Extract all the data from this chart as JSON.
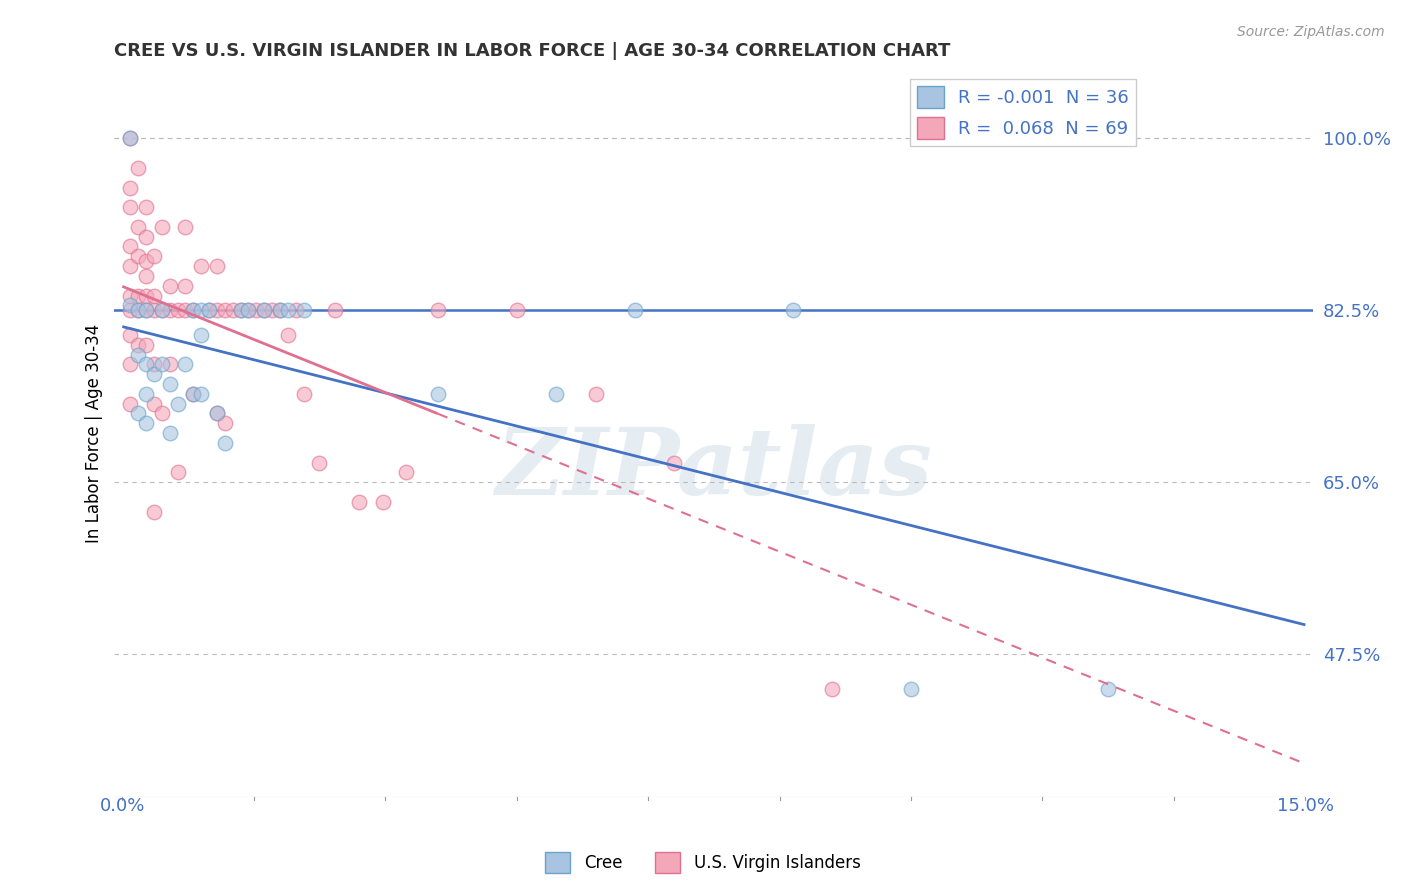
{
  "title": "CREE VS U.S. VIRGIN ISLANDER IN LABOR FORCE | AGE 30-34 CORRELATION CHART",
  "source": "Source: ZipAtlas.com",
  "ylabel": "In Labor Force | Age 30-34",
  "ytick_values": [
    1.0,
    0.825,
    0.65,
    0.475
  ],
  "ytick_labels": [
    "100.0%",
    "82.5%",
    "65.0%",
    "47.5%"
  ],
  "xlim": [
    0.0,
    0.15
  ],
  "ylim": [
    0.33,
    1.07
  ],
  "cree_color": "#a8c4e0",
  "cree_edge_color": "#6aa3cc",
  "virgin_color": "#f4a7b9",
  "virgin_edge_color": "#e07090",
  "cree_R": "-0.001",
  "cree_N": "36",
  "virgin_R": "0.068",
  "virgin_N": "69",
  "legend_label_cree": "Cree",
  "legend_label_virgin": "U.S. Virgin Islanders",
  "watermark_text": "ZIPatlas",
  "hline_y": 0.825,
  "hline_color": "#4472c4",
  "grid_color": "#bbbbbb",
  "title_color": "#333333",
  "axis_label_color": "#4472c4",
  "tick_color": "#4472c4",
  "marker_size": 10,
  "marker_alpha": 0.6,
  "cree_x": [
    0.001,
    0.001,
    0.002,
    0.002,
    0.002,
    0.003,
    0.003,
    0.003,
    0.003,
    0.004,
    0.005,
    0.005,
    0.006,
    0.006,
    0.007,
    0.008,
    0.009,
    0.009,
    0.01,
    0.01,
    0.01,
    0.011,
    0.012,
    0.013,
    0.015,
    0.016,
    0.018,
    0.02,
    0.021,
    0.023,
    0.04,
    0.055,
    0.065,
    0.085,
    0.1,
    0.125
  ],
  "cree_y": [
    1.0,
    0.83,
    0.825,
    0.78,
    0.72,
    0.825,
    0.77,
    0.74,
    0.71,
    0.76,
    0.825,
    0.77,
    0.75,
    0.7,
    0.73,
    0.77,
    0.825,
    0.74,
    0.825,
    0.8,
    0.74,
    0.825,
    0.72,
    0.69,
    0.825,
    0.825,
    0.825,
    0.825,
    0.825,
    0.825,
    0.74,
    0.74,
    0.825,
    0.825,
    0.44,
    0.44
  ],
  "virgin_x": [
    0.001,
    0.001,
    0.001,
    0.001,
    0.001,
    0.001,
    0.001,
    0.001,
    0.001,
    0.001,
    0.002,
    0.002,
    0.002,
    0.002,
    0.002,
    0.002,
    0.003,
    0.003,
    0.003,
    0.003,
    0.003,
    0.003,
    0.003,
    0.004,
    0.004,
    0.004,
    0.004,
    0.004,
    0.004,
    0.005,
    0.005,
    0.005,
    0.006,
    0.006,
    0.006,
    0.007,
    0.007,
    0.008,
    0.008,
    0.008,
    0.009,
    0.009,
    0.01,
    0.011,
    0.012,
    0.012,
    0.012,
    0.013,
    0.013,
    0.014,
    0.015,
    0.016,
    0.017,
    0.018,
    0.019,
    0.02,
    0.021,
    0.022,
    0.023,
    0.025,
    0.027,
    0.03,
    0.033,
    0.036,
    0.04,
    0.05,
    0.06,
    0.07,
    0.09
  ],
  "virgin_y": [
    1.0,
    0.95,
    0.93,
    0.89,
    0.87,
    0.84,
    0.825,
    0.8,
    0.77,
    0.73,
    0.97,
    0.91,
    0.88,
    0.84,
    0.825,
    0.79,
    0.93,
    0.9,
    0.875,
    0.86,
    0.84,
    0.825,
    0.79,
    0.88,
    0.84,
    0.825,
    0.77,
    0.73,
    0.62,
    0.91,
    0.825,
    0.72,
    0.85,
    0.825,
    0.77,
    0.825,
    0.66,
    0.91,
    0.85,
    0.825,
    0.825,
    0.74,
    0.87,
    0.825,
    0.87,
    0.825,
    0.72,
    0.825,
    0.71,
    0.825,
    0.825,
    0.825,
    0.825,
    0.825,
    0.825,
    0.825,
    0.8,
    0.825,
    0.74,
    0.67,
    0.825,
    0.63,
    0.63,
    0.66,
    0.825,
    0.825,
    0.74,
    0.67,
    0.44
  ],
  "virgin_line_solid_start": 0.0,
  "virgin_line_solid_end": 0.04,
  "virgin_line_dash_start": 0.04,
  "virgin_line_dash_end": 0.15
}
